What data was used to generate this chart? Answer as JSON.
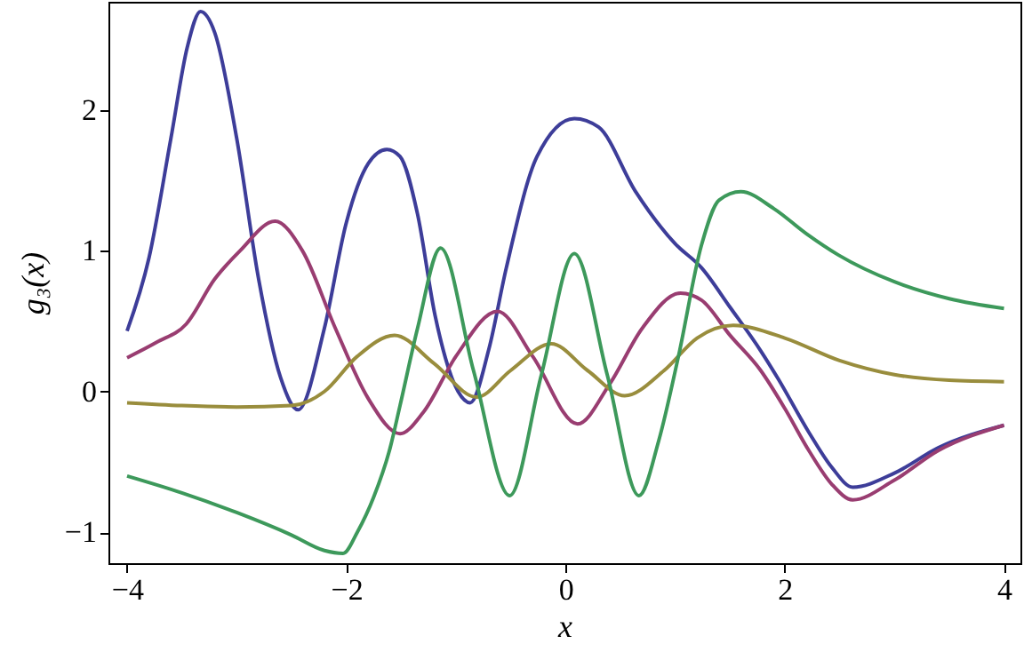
{
  "chart_data": {
    "type": "line",
    "xlabel": "x",
    "ylabel": "g₃(x)",
    "xlim": [
      -4.17,
      4.15
    ],
    "ylim": [
      -1.22,
      2.77
    ],
    "xticks": [
      -4,
      -2,
      0,
      2,
      4
    ],
    "yticks": [
      -1,
      0,
      1,
      2
    ],
    "series": [
      {
        "color": "#3d3d99",
        "x": [
          -4,
          -3.8,
          -3.6,
          -3.45,
          -3.33,
          -3.2,
          -3.0,
          -2.8,
          -2.6,
          -2.44,
          -2.2,
          -2.0,
          -1.8,
          -1.63,
          -1.51,
          -1.35,
          -1.19,
          -0.98,
          -0.87,
          -0.7,
          -0.54,
          -0.26,
          0.08,
          0.3,
          0.64,
          1.0,
          1.24,
          1.5,
          1.78,
          1.94,
          2.22,
          2.43,
          2.62,
          3.0,
          3.4,
          4
        ],
        "values": [
          0.43,
          0.95,
          1.8,
          2.45,
          2.7,
          2.55,
          1.8,
          0.8,
          0.1,
          -0.13,
          0.45,
          1.2,
          1.62,
          1.72,
          1.67,
          1.26,
          0.54,
          0.0,
          -0.08,
          0.3,
          0.88,
          1.67,
          1.94,
          1.88,
          1.42,
          1.05,
          0.88,
          0.6,
          0.29,
          0.09,
          -0.29,
          -0.54,
          -0.68,
          -0.58,
          -0.4,
          -0.24
        ]
      },
      {
        "color": "#993d71",
        "x": [
          -4,
          -3.73,
          -3.46,
          -3.2,
          -2.97,
          -2.65,
          -2.4,
          -2.1,
          -1.8,
          -1.51,
          -1.3,
          -1.0,
          -0.62,
          -0.3,
          0.11,
          0.4,
          0.7,
          1.05,
          1.24,
          1.5,
          1.78,
          2.0,
          2.22,
          2.43,
          2.62,
          3.0,
          3.4,
          4
        ],
        "values": [
          0.24,
          0.35,
          0.48,
          0.8,
          1.0,
          1.21,
          1.0,
          0.45,
          -0.05,
          -0.3,
          -0.15,
          0.25,
          0.57,
          0.25,
          -0.23,
          0.05,
          0.45,
          0.7,
          0.65,
          0.4,
          0.15,
          -0.12,
          -0.42,
          -0.66,
          -0.77,
          -0.63,
          -0.42,
          -0.24
        ]
      },
      {
        "color": "#998d3d",
        "x": [
          -4,
          -3.5,
          -3,
          -2.5,
          -2.2,
          -1.9,
          -1.56,
          -1.2,
          -0.81,
          -0.5,
          -0.13,
          0.2,
          0.54,
          0.9,
          1.2,
          1.53,
          2.0,
          2.5,
          3.0,
          3.5,
          4
        ],
        "values": [
          -0.08,
          -0.1,
          -0.11,
          -0.1,
          0.0,
          0.25,
          0.4,
          0.2,
          -0.04,
          0.15,
          0.34,
          0.15,
          -0.03,
          0.15,
          0.38,
          0.47,
          0.38,
          0.22,
          0.12,
          0.08,
          0.07
        ]
      },
      {
        "color": "#3d995b",
        "x": [
          -4,
          -3.5,
          -3,
          -2.5,
          -2.2,
          -2.03,
          -1.9,
          -1.75,
          -1.6,
          -1.51,
          -1.35,
          -1.14,
          -0.84,
          -0.51,
          -0.22,
          0.08,
          0.38,
          0.67,
          0.85,
          1.03,
          1.24,
          1.4,
          1.6,
          1.9,
          2.2,
          2.49,
          3.0,
          3.5,
          4
        ],
        "values": [
          -0.6,
          -0.72,
          -0.86,
          -1.02,
          -1.13,
          -1.15,
          -1.0,
          -0.75,
          -0.4,
          -0.1,
          0.45,
          1.02,
          0.15,
          -0.74,
          0.12,
          0.98,
          0.12,
          -0.74,
          -0.35,
          0.25,
          1.04,
          1.36,
          1.42,
          1.3,
          1.12,
          0.97,
          0.78,
          0.66,
          0.59
        ]
      }
    ]
  }
}
